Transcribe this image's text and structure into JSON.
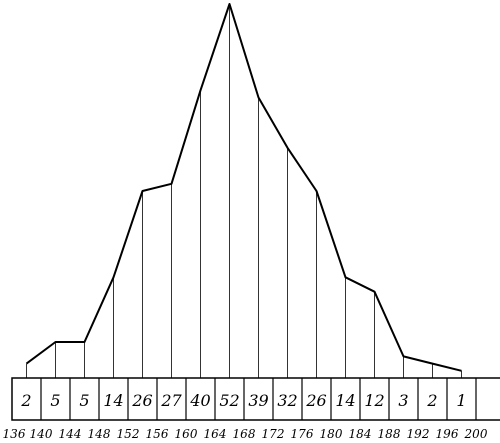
{
  "chart_data": {
    "type": "line",
    "title": "",
    "xlabel": "",
    "ylabel": "",
    "x_ticks": [
      "136",
      "140",
      "144",
      "148",
      "152",
      "156",
      "160",
      "164",
      "168",
      "172",
      "176",
      "180",
      "184",
      "188",
      "192",
      "196",
      "200"
    ],
    "categories": [
      "136-140",
      "140-144",
      "144-148",
      "148-152",
      "152-156",
      "156-160",
      "160-164",
      "164-168",
      "168-172",
      "172-176",
      "176-180",
      "180-184",
      "184-188",
      "188-192",
      "192-196",
      "196-200"
    ],
    "values": [
      2,
      5,
      5,
      14,
      26,
      27,
      40,
      52,
      39,
      32,
      26,
      14,
      12,
      3,
      2,
      1
    ],
    "xlim": [
      136,
      200
    ],
    "ylim": [
      0,
      52
    ],
    "grid": false
  }
}
